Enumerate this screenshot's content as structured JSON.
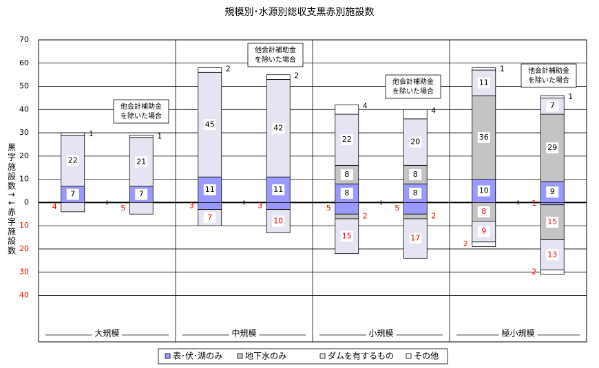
{
  "chart_data": {
    "type": "stacked_bar",
    "title": "規模別･水源別総収支黒赤別施設数",
    "y_label": "黒字施設数↑↓赤字施設数",
    "categories": [
      null,
      null,
      null,
      null,
      null,
      null,
      null,
      null
    ],
    "groups": [
      "大規模",
      "中規模",
      "小規模",
      "極小規模"
    ],
    "annotations": [
      [
        "他会計補助金",
        "を除いた場合"
      ],
      [
        "他会計補助金",
        "を除いた場合"
      ],
      [
        "他会計補助金",
        "を除いた場合"
      ],
      [
        "他会計補助金",
        "を除いた場合"
      ]
    ],
    "ylim": [
      -60,
      70
    ],
    "yticks": [
      {
        "value": -40,
        "label": "40"
      },
      {
        "value": -30,
        "label": "30"
      },
      {
        "value": -20,
        "label": "20"
      },
      {
        "value": -10,
        "label": "10"
      },
      0,
      10,
      20,
      30,
      40,
      50,
      60,
      70
    ],
    "deficit_color": "#ff0000",
    "grid": true,
    "legend": "bottom",
    "series": [
      {
        "name": "表･伏･湖のみ",
        "color": "#9999ff",
        "values": [
          7,
          7,
          11,
          11,
          8,
          8,
          10,
          9
        ],
        "deficit_values": [
          null,
          null,
          -3,
          -3,
          -5,
          -5,
          null,
          -1
        ],
        "deficit_value_labels": [
          null,
          null,
          "3",
          "3",
          "5",
          "5",
          null,
          "1"
        ]
      },
      {
        "name": "地下水のみ",
        "color": "#c4c4c4",
        "values": [
          null,
          null,
          null,
          null,
          8,
          8,
          36,
          29
        ],
        "deficit_values": [
          null,
          null,
          null,
          null,
          -2,
          -2,
          -8,
          -15
        ],
        "deficit_value_labels": [
          null,
          null,
          null,
          null,
          "2",
          "2",
          "8",
          "15"
        ]
      },
      {
        "name": "ダムを有するもの",
        "color": "#e4e4f2",
        "values": [
          22,
          21,
          45,
          42,
          22,
          20,
          11,
          7
        ],
        "deficit_values": [
          -4,
          -5,
          -7,
          -10,
          -15,
          -17,
          -9,
          -13
        ],
        "deficit_value_labels": [
          "4",
          "5",
          "7",
          "10",
          "15",
          "17",
          "9",
          "13"
        ]
      },
      {
        "name": "その他",
        "color": "#ffffff",
        "values": [
          1,
          1,
          2,
          2,
          4,
          4,
          1,
          1
        ],
        "deficit_values": [
          null,
          null,
          null,
          null,
          null,
          null,
          -2,
          -2
        ],
        "deficit_value_labels": [
          null,
          null,
          null,
          null,
          null,
          null,
          "2",
          "2"
        ]
      }
    ]
  }
}
